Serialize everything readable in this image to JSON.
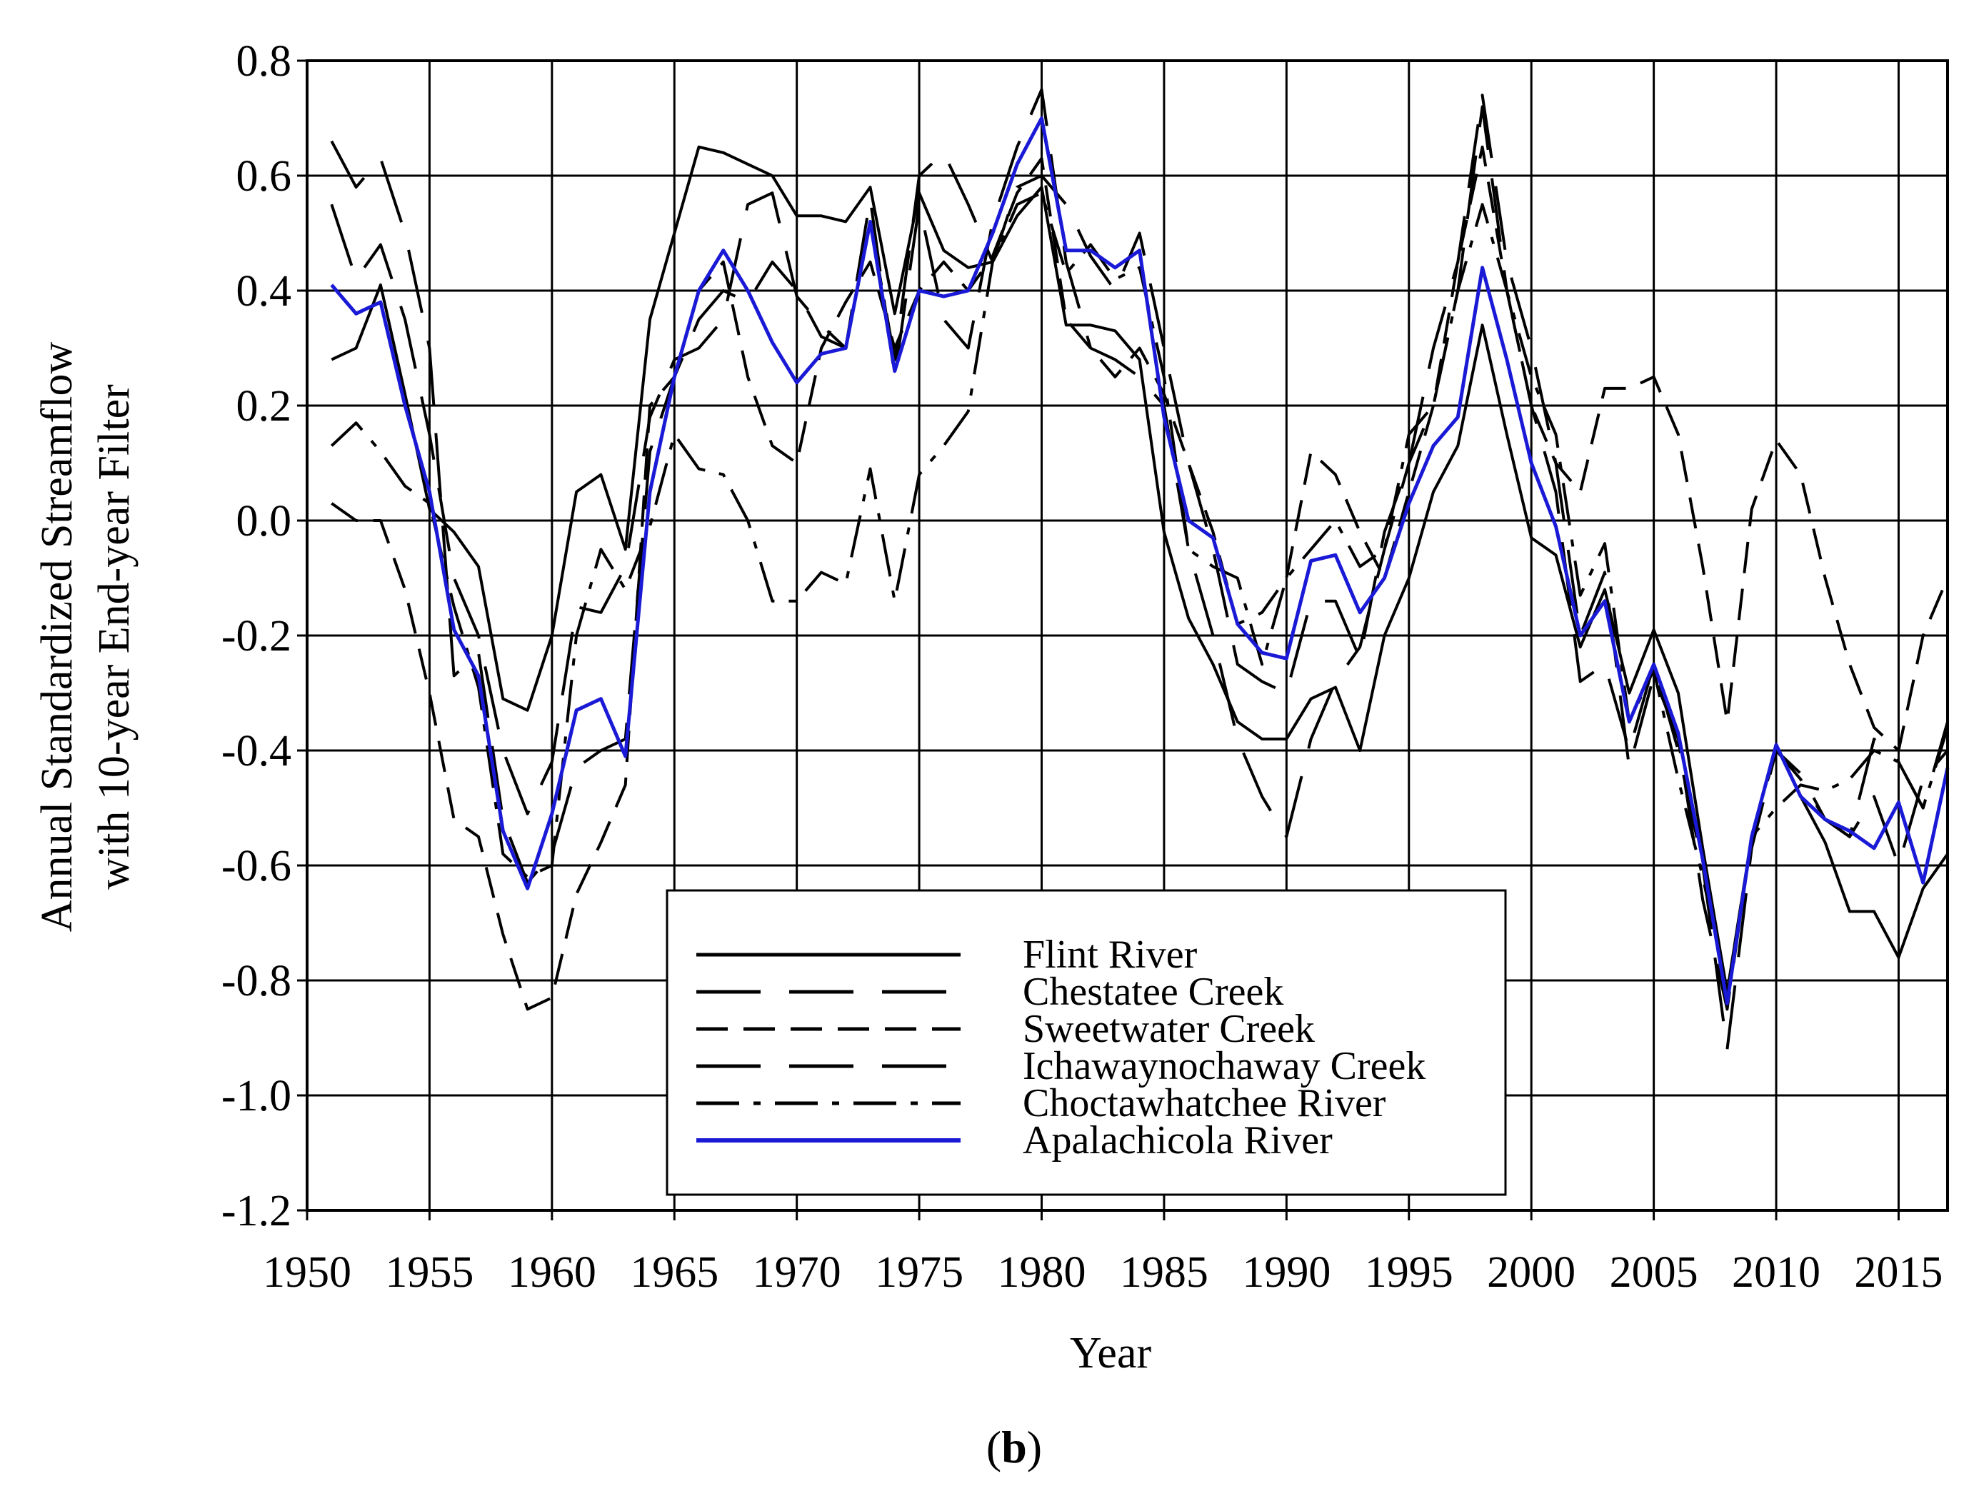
{
  "chart_data": {
    "type": "line",
    "title": "",
    "xlabel": "Year",
    "ylabel_lines": [
      "Annual Standardized Streamflow",
      "with 10-year End-year Filter"
    ],
    "panel_label": {
      "open": "(",
      "letter": "b",
      "close": ")"
    },
    "xlim": [
      1950,
      2017
    ],
    "ylim": [
      -1.2,
      0.8
    ],
    "x_ticks": [
      1950,
      1955,
      1960,
      1965,
      1970,
      1975,
      1980,
      1985,
      1990,
      1995,
      2000,
      2005,
      2010,
      2015
    ],
    "x_tick_labels": [
      "1950",
      "1955",
      "1960",
      "1965",
      "1970",
      "1975",
      "1980",
      "1985",
      "1990",
      "1995",
      "2000",
      "2005",
      "2010",
      "2015"
    ],
    "y_ticks": [
      0.8,
      0.6,
      0.4,
      0.2,
      0.0,
      -0.2,
      -0.4,
      -0.6,
      -0.8,
      -1.0,
      -1.2
    ],
    "y_tick_labels": [
      "0.8",
      "0.6",
      "0.4",
      "0.2",
      "0.0",
      "-0.2",
      "-0.4",
      "-0.6",
      "-0.8",
      "-1.0",
      "-1.2"
    ],
    "grid": true,
    "legend_position": "bottom-center",
    "x": [
      1951,
      1952,
      1953,
      1954,
      1955,
      1956,
      1957,
      1958,
      1959,
      1960,
      1961,
      1962,
      1963,
      1964,
      1965,
      1966,
      1967,
      1968,
      1969,
      1970,
      1971,
      1972,
      1973,
      1974,
      1975,
      1976,
      1977,
      1978,
      1979,
      1980,
      1981,
      1982,
      1983,
      1984,
      1985,
      1986,
      1987,
      1988,
      1989,
      1990,
      1991,
      1992,
      1993,
      1994,
      1995,
      1996,
      1997,
      1998,
      1999,
      2000,
      2001,
      2002,
      2003,
      2004,
      2005,
      2006,
      2007,
      2008,
      2009,
      2010,
      2011,
      2012,
      2013,
      2014,
      2015,
      2016,
      2017
    ],
    "series": [
      {
        "name": "Flint River",
        "color": "#000000",
        "dash": "solid",
        "values": [
          0.28,
          0.3,
          0.41,
          0.22,
          0.02,
          -0.02,
          -0.08,
          -0.31,
          -0.33,
          -0.2,
          0.05,
          0.08,
          -0.05,
          0.35,
          0.5,
          0.65,
          0.64,
          0.62,
          0.6,
          0.53,
          0.53,
          0.52,
          0.58,
          0.36,
          0.57,
          0.47,
          0.44,
          0.45,
          0.53,
          0.58,
          0.34,
          0.34,
          0.33,
          0.28,
          -0.02,
          -0.17,
          -0.25,
          -0.35,
          -0.38,
          -0.38,
          -0.31,
          -0.29,
          -0.4,
          -0.2,
          -0.1,
          0.05,
          0.13,
          0.34,
          0.15,
          -0.03,
          -0.06,
          -0.22,
          -0.12,
          -0.3,
          -0.19,
          -0.3,
          -0.57,
          -0.82,
          -0.55,
          -0.39,
          -0.48,
          -0.56,
          -0.68,
          -0.68,
          -0.76,
          -0.64,
          -0.58
        ]
      },
      {
        "name": "Chestatee Creek",
        "color": "#000000",
        "dash": "longdash",
        "values": [
          0.55,
          0.42,
          0.48,
          0.35,
          0.15,
          -0.1,
          -0.2,
          -0.4,
          -0.51,
          -0.42,
          -0.15,
          -0.16,
          -0.08,
          0.18,
          0.28,
          0.3,
          0.35,
          0.55,
          0.57,
          0.39,
          0.34,
          0.3,
          0.56,
          0.25,
          0.55,
          0.35,
          0.3,
          0.52,
          0.65,
          0.75,
          0.45,
          0.3,
          0.28,
          0.25,
          0.2,
          -0.05,
          -0.2,
          -0.38,
          -0.48,
          -0.55,
          -0.38,
          -0.28,
          -0.22,
          -0.05,
          0.1,
          0.2,
          0.4,
          0.72,
          0.4,
          0.2,
          0.05,
          -0.28,
          -0.25,
          -0.4,
          -0.25,
          -0.4,
          -0.6,
          -0.92,
          -0.57,
          -0.4,
          -0.45,
          -0.52,
          -0.55,
          -0.48,
          -0.6,
          -0.45,
          -0.4
        ]
      },
      {
        "name": "Sweetwater Creek",
        "color": "#000000",
        "dash": "shortdash",
        "values": [
          0.03,
          0.0,
          0.0,
          -0.12,
          -0.3,
          -0.52,
          -0.55,
          -0.72,
          -0.85,
          -0.83,
          -0.65,
          -0.56,
          -0.46,
          0.2,
          0.25,
          0.4,
          0.45,
          0.25,
          0.13,
          0.1,
          0.3,
          0.38,
          0.45,
          0.3,
          0.4,
          0.45,
          0.4,
          0.46,
          0.57,
          0.63,
          0.35,
          0.3,
          0.25,
          0.3,
          0.22,
          0.1,
          -0.02,
          -0.18,
          -0.16,
          -0.1,
          0.12,
          0.08,
          -0.02,
          -0.1,
          0.05,
          0.2,
          0.45,
          0.65,
          0.4,
          0.2,
          0.1,
          0.05,
          0.23,
          0.23,
          0.25,
          0.15,
          -0.08,
          -0.35,
          0.02,
          0.14,
          0.08,
          -0.1,
          -0.25,
          -0.36,
          -0.4,
          -0.2,
          -0.1
        ]
      },
      {
        "name": "Ichawaynochaway Creek",
        "color": "#000000",
        "dash": "longdash",
        "values": [
          0.66,
          0.58,
          0.63,
          0.5,
          0.3,
          -0.27,
          -0.23,
          -0.52,
          -0.63,
          -0.58,
          -0.43,
          -0.4,
          -0.38,
          0.12,
          0.25,
          0.35,
          0.4,
          0.38,
          0.45,
          0.4,
          0.32,
          0.3,
          0.52,
          0.28,
          0.6,
          0.64,
          0.55,
          0.45,
          0.58,
          0.6,
          0.55,
          0.46,
          0.4,
          0.5,
          0.3,
          0.1,
          -0.05,
          -0.25,
          -0.28,
          -0.3,
          -0.14,
          -0.14,
          -0.24,
          -0.02,
          0.1,
          0.3,
          0.45,
          0.74,
          0.45,
          0.3,
          0.1,
          -0.2,
          -0.09,
          -0.43,
          -0.27,
          -0.38,
          -0.66,
          -0.85,
          -0.55,
          -0.4,
          -0.44,
          -0.52,
          -0.55,
          -0.38,
          -0.42,
          -0.5,
          -0.35
        ]
      },
      {
        "name": "Choctawhatchee River",
        "color": "#000000",
        "dash": "dashdot",
        "values": [
          0.13,
          0.17,
          0.12,
          0.06,
          0.03,
          -0.15,
          -0.29,
          -0.58,
          -0.62,
          -0.6,
          -0.2,
          -0.05,
          -0.12,
          -0.01,
          0.15,
          0.09,
          0.08,
          0.0,
          -0.14,
          -0.14,
          -0.09,
          -0.11,
          0.09,
          -0.14,
          0.08,
          0.13,
          0.19,
          0.45,
          0.55,
          0.57,
          0.43,
          0.48,
          0.42,
          0.44,
          0.25,
          -0.05,
          -0.08,
          -0.1,
          -0.25,
          -0.1,
          -0.05,
          0.0,
          -0.08,
          -0.05,
          0.15,
          0.2,
          0.4,
          0.55,
          0.4,
          0.25,
          0.15,
          -0.13,
          -0.04,
          -0.35,
          -0.26,
          -0.45,
          -0.62,
          -0.82,
          -0.55,
          -0.5,
          -0.46,
          -0.47,
          -0.45,
          -0.4,
          -0.42,
          -0.5,
          -0.36
        ]
      },
      {
        "name": "Apalachicola River",
        "color": "#1a1ad6",
        "dash": "solid",
        "values": [
          0.41,
          0.36,
          0.38,
          0.2,
          0.05,
          -0.19,
          -0.27,
          -0.54,
          -0.64,
          -0.51,
          -0.33,
          -0.31,
          -0.41,
          0.05,
          0.25,
          0.4,
          0.47,
          0.4,
          0.31,
          0.24,
          0.29,
          0.3,
          0.52,
          0.26,
          0.4,
          0.39,
          0.4,
          0.5,
          0.62,
          0.7,
          0.47,
          0.47,
          0.44,
          0.47,
          0.18,
          0.0,
          -0.03,
          -0.18,
          -0.23,
          -0.24,
          -0.07,
          -0.06,
          -0.16,
          -0.1,
          0.03,
          0.13,
          0.18,
          0.44,
          0.28,
          0.1,
          -0.01,
          -0.2,
          -0.14,
          -0.35,
          -0.25,
          -0.37,
          -0.59,
          -0.84,
          -0.55,
          -0.39,
          -0.48,
          -0.52,
          -0.54,
          -0.57,
          -0.49,
          -0.63,
          -0.43
        ]
      }
    ]
  }
}
